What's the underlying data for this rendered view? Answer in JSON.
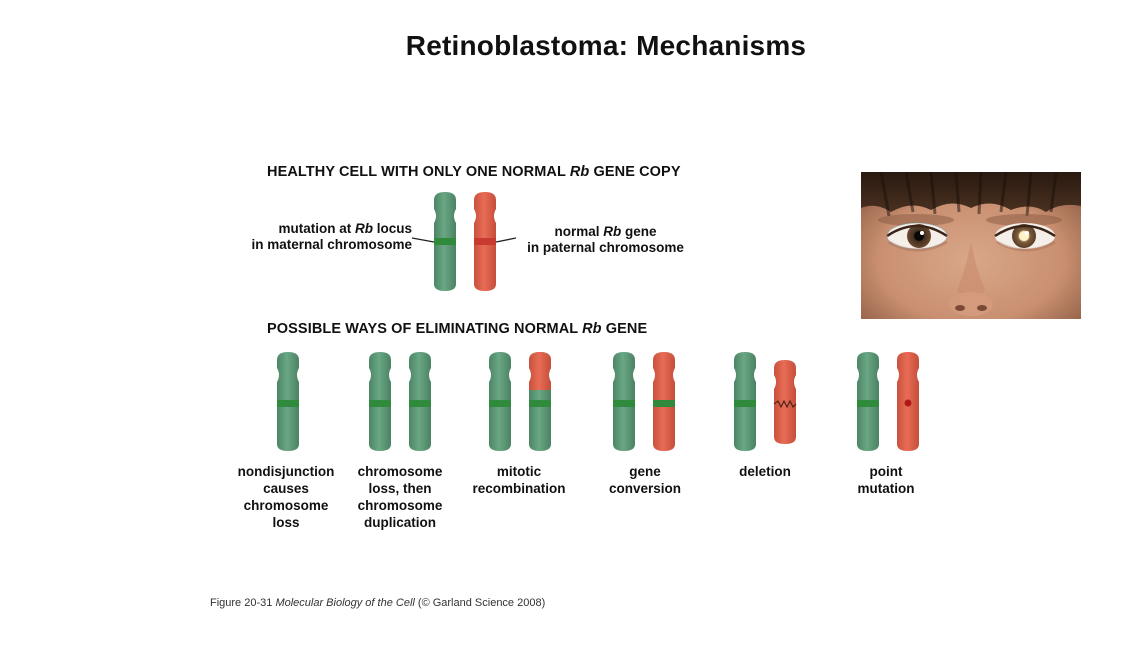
{
  "slide": {
    "title": "Retinoblastoma: Mechanisms"
  },
  "figure": {
    "healthy_heading_pre": "HEALTHY CELL WITH ONLY ONE NORMAL ",
    "healthy_heading_em": "Rb",
    "healthy_heading_post": " GENE COPY",
    "maternal_label_line1_pre": "mutation at ",
    "maternal_label_line1_em": "Rb",
    "maternal_label_line1_post": " locus",
    "maternal_label_line2": "in maternal chromosome",
    "paternal_label_line1_pre": "normal ",
    "paternal_label_line1_em": "Rb",
    "paternal_label_line1_post": " gene",
    "paternal_label_line2": "in paternal chromosome",
    "ways_heading_pre": "POSSIBLE WAYS OF ELIMINATING NORMAL ",
    "ways_heading_em": "Rb",
    "ways_heading_post": " GENE",
    "mechanisms": [
      {
        "caption": [
          "nondisjunction",
          "causes",
          "chromosome",
          "loss"
        ]
      },
      {
        "caption": [
          "chromosome",
          "loss, then",
          "chromosome",
          "duplication"
        ]
      },
      {
        "caption": [
          "mitotic",
          "recombination"
        ]
      },
      {
        "caption": [
          "gene",
          "conversion"
        ]
      },
      {
        "caption": [
          "deletion"
        ]
      },
      {
        "caption": [
          "point",
          "mutation"
        ]
      }
    ],
    "credit_pre": "Figure 20-31  ",
    "credit_em": "Molecular Biology of the Cell",
    "credit_post": " (© Garland Science 2008)"
  },
  "colors": {
    "maternal": "#5d9a78",
    "paternal": "#e0604a",
    "mutation_band": "#2f8a3c",
    "normal_band": "#c83a30",
    "background": "#ffffff"
  },
  "photo": {
    "subject": "child-eyes-leukocoria"
  }
}
